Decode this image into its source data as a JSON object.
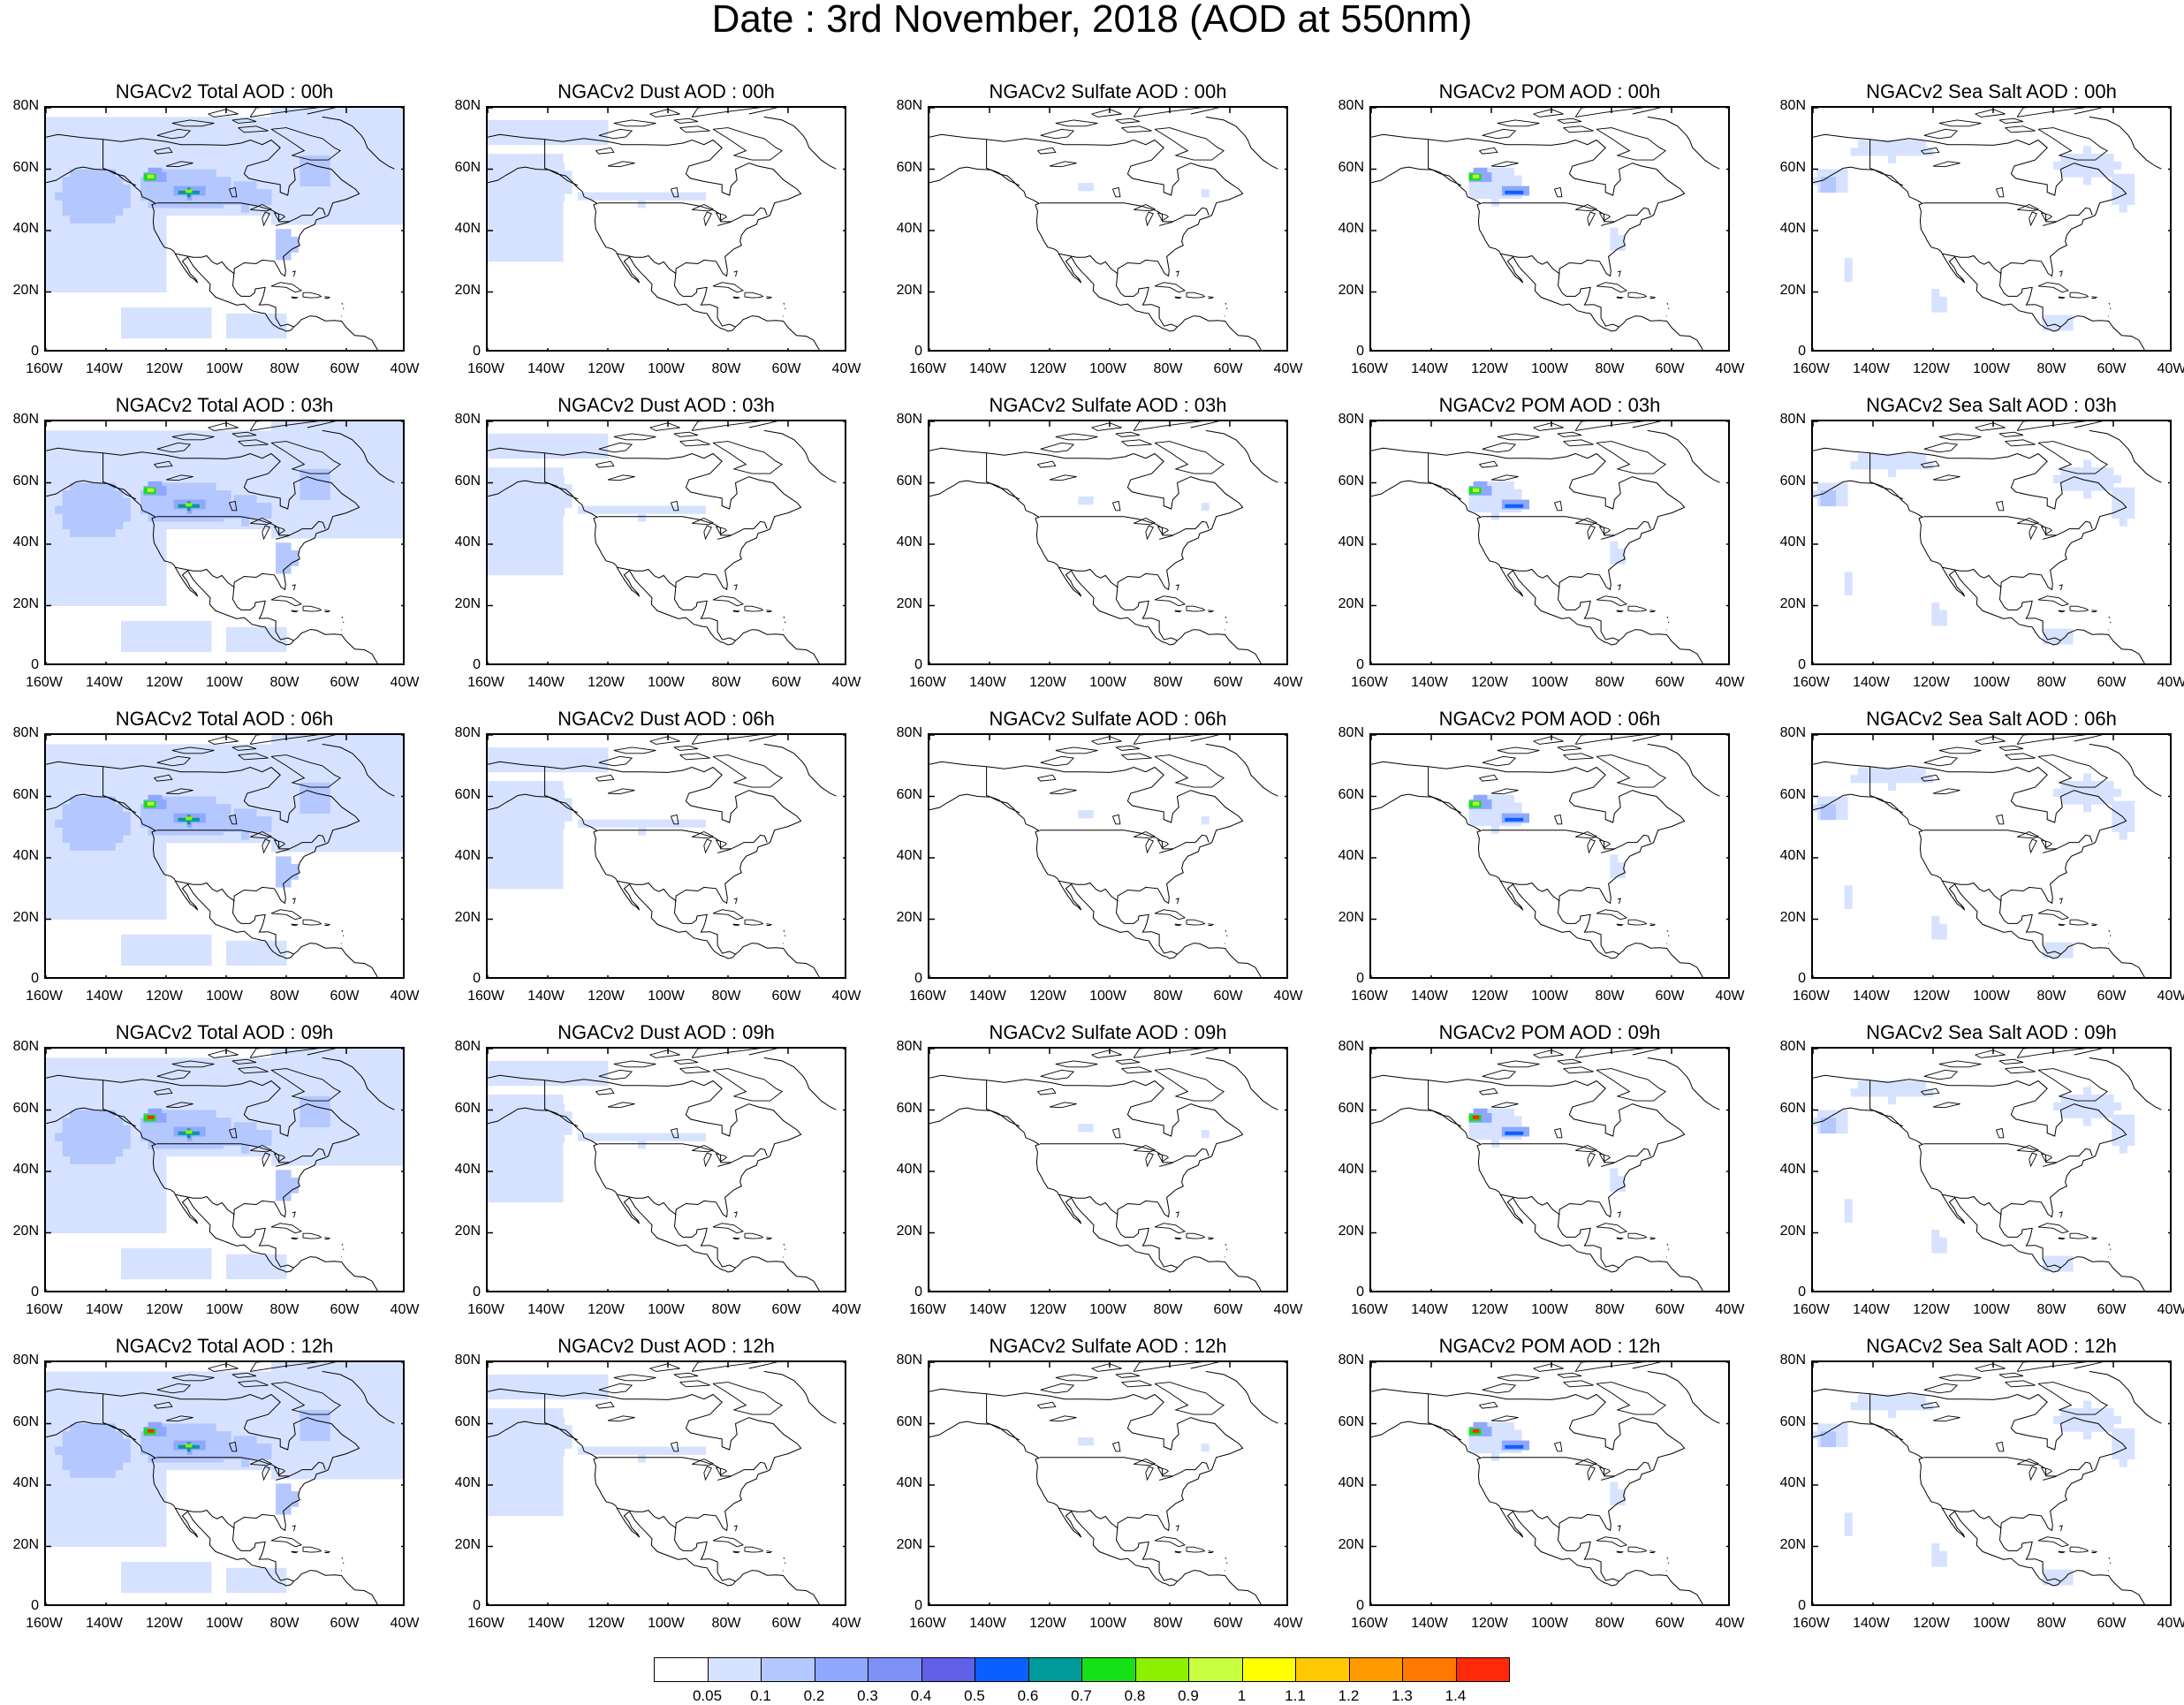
{
  "title": "Date : 3rd November, 2018 (AOD at 550nm)",
  "panel_titles": [
    [
      "NGACv2 Total AOD : 00h",
      "NGACv2 Dust AOD : 00h",
      "NGACv2 Sulfate AOD : 00h",
      "NGACv2 POM AOD : 00h",
      "NGACv2 Sea Salt AOD : 00h"
    ],
    [
      "NGACv2 Total AOD : 03h",
      "NGACv2 Dust AOD : 03h",
      "NGACv2 Sulfate AOD : 03h",
      "NGACv2 POM AOD : 03h",
      "NGACv2 Sea Salt AOD : 03h"
    ],
    [
      "NGACv2 Total AOD : 06h",
      "NGACv2 Dust AOD : 06h",
      "NGACv2 Sulfate AOD : 06h",
      "NGACv2 POM AOD : 06h",
      "NGACv2 Sea Salt AOD : 06h"
    ],
    [
      "NGACv2 Total AOD : 09h",
      "NGACv2 Dust AOD : 09h",
      "NGACv2 Sulfate AOD : 09h",
      "NGACv2 POM AOD : 09h",
      "NGACv2 Sea Salt  AOD : 09h"
    ],
    [
      "NGACv2 Total AOD  : 12h",
      "NGACv2 Dust AOD : 12h",
      "NGACv2 Sulfate AOD : 12h",
      "NGACv2 POM  AOD : 12h",
      "NGACv2 Sea Salt  AOD : 12h"
    ]
  ],
  "lat_ticks": [
    "80N",
    "60N",
    "40N",
    "20N",
    "0"
  ],
  "lon_ticks": [
    "160W",
    "140W",
    "120W",
    "100W",
    "80W",
    "60W",
    "40W"
  ],
  "colorbar": {
    "colors": [
      "#ffffff",
      "#d6e2ff",
      "#b4c7ff",
      "#8fa8ff",
      "#7e90f5",
      "#6060e8",
      "#0a60ff",
      "#009a9a",
      "#16e016",
      "#8cf000",
      "#c8ff40",
      "#ffff00",
      "#ffc800",
      "#ff9a00",
      "#ff7800",
      "#ff2a0a"
    ],
    "labels": [
      "0.05",
      "0.1",
      "0.2",
      "0.3",
      "0.4",
      "0.5",
      "0.6",
      "0.7",
      "0.8",
      "0.9",
      "1",
      "1.1",
      "1.2",
      "1.3",
      "1.4"
    ]
  },
  "chart_data": {
    "type": "heatmap",
    "title": "Date : 3rd November, 2018 (AOD at 550nm)",
    "variable": "Aerosol Optical Depth at 550nm",
    "rows_forecast_hours": [
      "00h",
      "03h",
      "06h",
      "09h",
      "12h"
    ],
    "columns_species": [
      "Total",
      "Dust",
      "Sulfate",
      "POM",
      "Sea Salt"
    ],
    "xlim": [
      "160W",
      "40W"
    ],
    "ylim": [
      "0",
      "80N"
    ],
    "levels": [
      0.05,
      0.1,
      0.2,
      0.3,
      0.4,
      0.5,
      0.6,
      0.7,
      0.8,
      0.9,
      1,
      1.1,
      1.2,
      1.3,
      1.4
    ],
    "peak_aod_estimate": {
      "Total": [
        0.9,
        0.9,
        0.9,
        1.4,
        1.4
      ],
      "Dust": [
        0.1,
        0.1,
        0.1,
        0.1,
        0.1
      ],
      "Sulfate": [
        0.1,
        0.1,
        0.05,
        0.05,
        0.05
      ],
      "POM": [
        0.9,
        0.9,
        0.9,
        1.4,
        1.2
      ],
      "Sea Salt": [
        0.2,
        0.2,
        0.2,
        0.2,
        0.2
      ]
    },
    "peak_location": "western Canada (~125W, 57N)"
  }
}
